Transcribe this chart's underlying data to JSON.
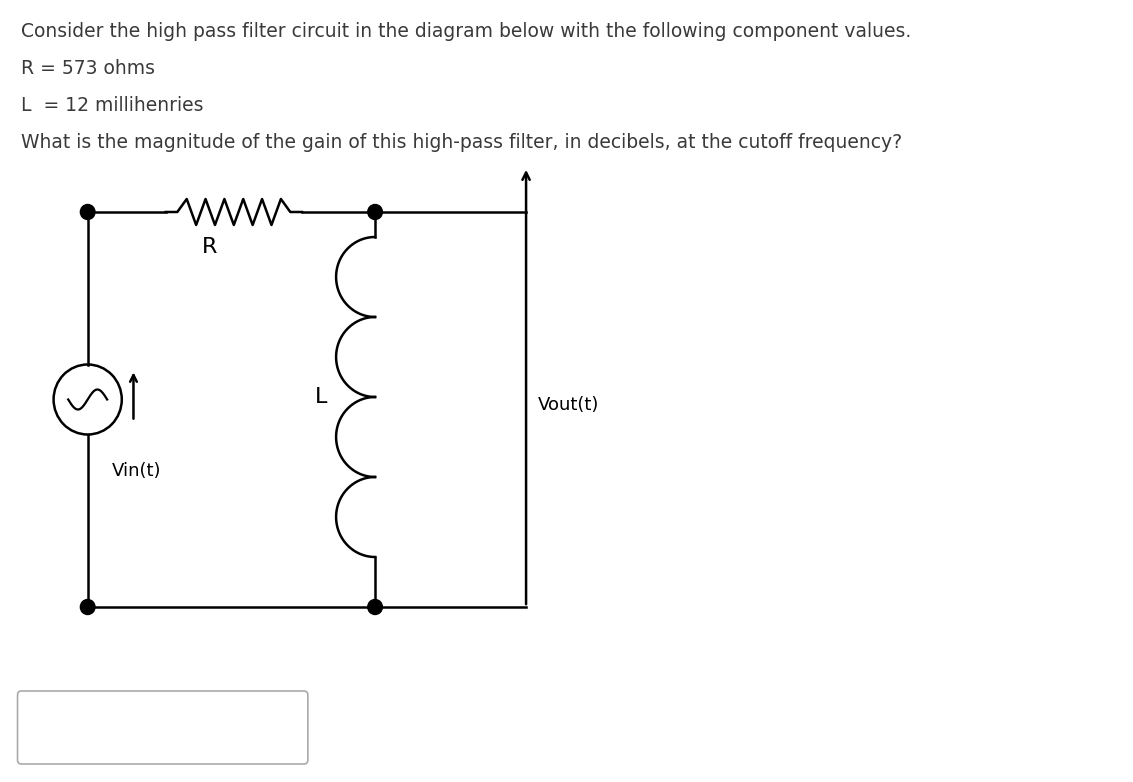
{
  "text_lines": [
    "Consider the high pass filter circuit in the diagram below with the following component values.",
    "R = 573 ohms",
    "L  = 12 millihenries",
    "What is the magnitude of the gain of this high-pass filter, in decibels, at the cutoff frequency?"
  ],
  "label_R": "R",
  "label_L": "L",
  "label_Vout": "Vout(t)",
  "label_Vin": "Vin(t)",
  "bg_color": "#ffffff",
  "line_color": "#000000",
  "text_color": "#3a3a3a",
  "font_size_body": 13.5,
  "font_size_labels": 13
}
